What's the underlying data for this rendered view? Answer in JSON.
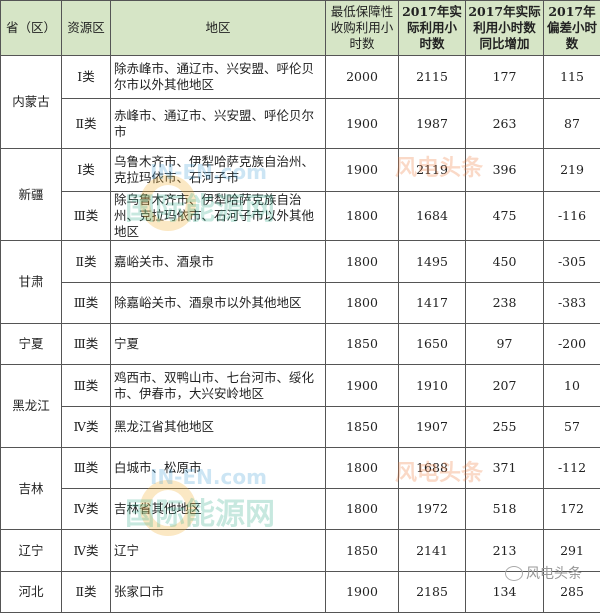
{
  "headers": [
    "省（区）",
    "资源区",
    "地区",
    "最低保障性收购利用小时数",
    "2017年实际利用小时数",
    "2017年实际利用小时数同比增加",
    "2017年偏差小时数"
  ],
  "groups": [
    {
      "province": "内蒙古",
      "rows": [
        {
          "zone": "Ⅰ类",
          "area": "除赤峰市、通辽市、兴安盟、呼伦贝尔市以外其他地区",
          "min": "2000",
          "actual": "2115",
          "increase": "177",
          "deviation": "115"
        },
        {
          "zone": "Ⅱ类",
          "area": "赤峰市、通辽市、兴安盟、呼伦贝尔市",
          "min": "1900",
          "actual": "1987",
          "increase": "263",
          "deviation": "87"
        }
      ]
    },
    {
      "province": "新疆",
      "rows": [
        {
          "zone": "Ⅰ类",
          "area": "乌鲁木齐市、伊犁哈萨克族自治州、克拉玛依市、石河子市",
          "min": "1900",
          "actual": "2119",
          "increase": "396",
          "deviation": "219"
        },
        {
          "zone": "Ⅲ类",
          "area": "除乌鲁木齐市、伊犁哈萨克族自治州、克拉玛依市、石河子市以外其他地区",
          "min": "1800",
          "actual": "1684",
          "increase": "475",
          "deviation": "-116"
        }
      ]
    },
    {
      "province": "甘肃",
      "rows": [
        {
          "zone": "Ⅱ类",
          "area": "嘉峪关市、酒泉市",
          "min": "1800",
          "actual": "1495",
          "increase": "450",
          "deviation": "-305"
        },
        {
          "zone": "Ⅲ类",
          "area": "除嘉峪关市、酒泉市以外其他地区",
          "min": "1800",
          "actual": "1417",
          "increase": "238",
          "deviation": "-383"
        }
      ]
    },
    {
      "province": "宁夏",
      "rows": [
        {
          "zone": "Ⅲ类",
          "area": "宁夏",
          "min": "1850",
          "actual": "1650",
          "increase": "97",
          "deviation": "-200"
        }
      ]
    },
    {
      "province": "黑龙江",
      "rows": [
        {
          "zone": "Ⅲ类",
          "area": "鸡西市、双鸭山市、七台河市、绥化市、伊春市，大兴安岭地区",
          "min": "1900",
          "actual": "1910",
          "increase": "207",
          "deviation": "10"
        },
        {
          "zone": "Ⅳ类",
          "area": "黑龙江省其他地区",
          "min": "1850",
          "actual": "1907",
          "increase": "255",
          "deviation": "57"
        }
      ]
    },
    {
      "province": "吉林",
      "rows": [
        {
          "zone": "Ⅲ类",
          "area": "白城市、松原市",
          "min": "1800",
          "actual": "1688",
          "increase": "371",
          "deviation": "-112"
        },
        {
          "zone": "Ⅳ类",
          "area": "吉林省其他地区",
          "min": "1800",
          "actual": "1972",
          "increase": "518",
          "deviation": "172"
        }
      ]
    },
    {
      "province": "辽宁",
      "rows": [
        {
          "zone": "Ⅳ类",
          "area": "辽宁",
          "min": "1850",
          "actual": "2141",
          "increase": "213",
          "deviation": "291"
        }
      ]
    },
    {
      "province": "河北",
      "rows": [
        {
          "zone": "Ⅱ类",
          "area": "张家口市",
          "min": "1900",
          "actual": "2185",
          "increase": "134",
          "deviation": "285"
        }
      ]
    }
  ],
  "watermarks": {
    "site_en": "IN-EN.com",
    "site_cn": "国际能源网",
    "brand": "风电头条"
  },
  "credit": {
    "label": "风电头条",
    "icon": "wechat-icon"
  },
  "colors": {
    "header_bg": "#d6e5c6",
    "border": "#555555"
  }
}
